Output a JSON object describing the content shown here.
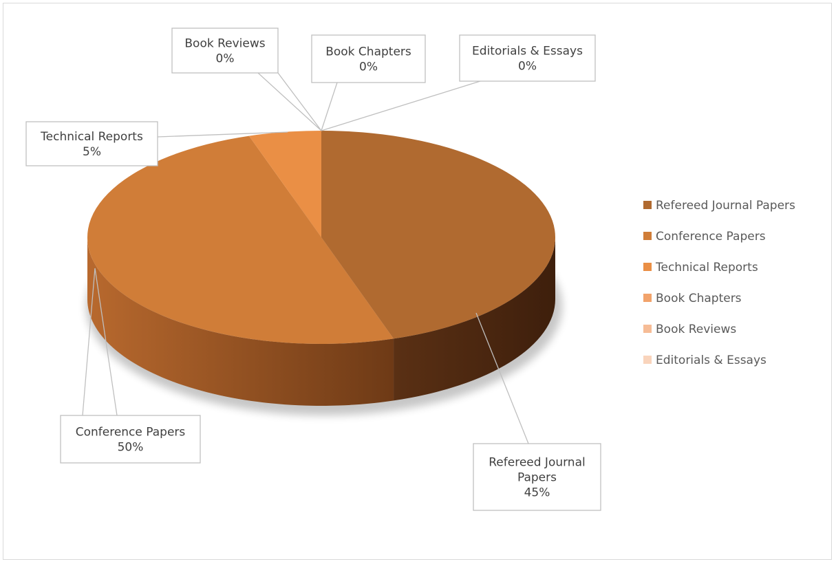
{
  "chart_data": {
    "type": "pie",
    "style": "3d",
    "legend_position": "right",
    "categories": [
      "Refereed Journal Papers",
      "Conference Papers",
      "Technical Reports",
      "Book Chapters",
      "Book Reviews",
      "Editorials & Essays"
    ],
    "values": [
      45,
      50,
      5,
      0,
      0,
      0
    ],
    "value_labels": [
      "45%",
      "50%",
      "5%",
      "0%",
      "0%",
      "0%"
    ],
    "colors": [
      "#b06a30",
      "#d07d38",
      "#ea8f45",
      "#f2a36b",
      "#f6bc96",
      "#f9d4bc"
    ]
  }
}
